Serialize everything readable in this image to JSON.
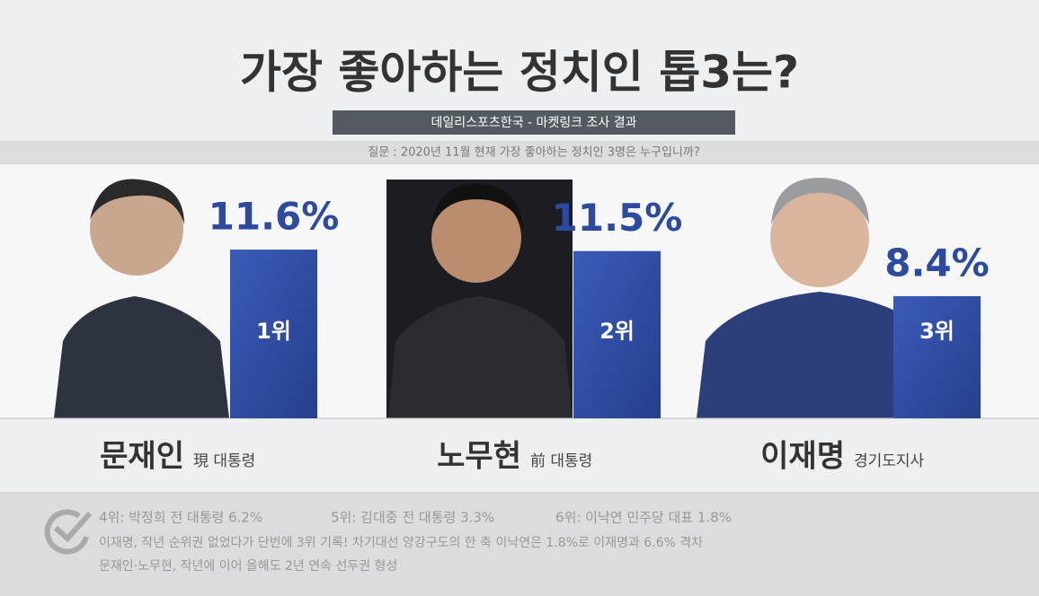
{
  "chart_data": {
    "type": "bar",
    "title": "가장 좋아하는 정치인 톱3는?",
    "subtitle": "데일리스포츠한국 - 마켓링크 조사 결과",
    "question": "질문 :  2020년 11월 현재 가장 좋아하는 정치인 3명은 누구입니까?",
    "categories": [
      "문재인",
      "노무현",
      "이재명"
    ],
    "roles": [
      "現 대통령",
      "前 대통령",
      "경기도지사"
    ],
    "values": [
      11.6,
      11.5,
      8.4
    ],
    "value_labels": [
      "11.6%",
      "11.5%",
      "8.4%"
    ],
    "rank_labels": [
      "1위",
      "2위",
      "3위"
    ],
    "color": "#2f4ea6",
    "footnotes": [
      "4위: 박정희 전 대통령 6.2%",
      "5위: 김대중 전 대통령 3.3%",
      "6위: 이낙연 민주당 대표 1.8%"
    ],
    "notes": [
      "이재명, 작년 순위권 없었다가 단번에 3위 기록!  차기대선 양강구도의 한 축 이낙연은 1.8%로  이재명과 6.6% 격차",
      "문재인·노무현, 작년에 이어 올해도 2년 연속 선두권 형성"
    ]
  }
}
